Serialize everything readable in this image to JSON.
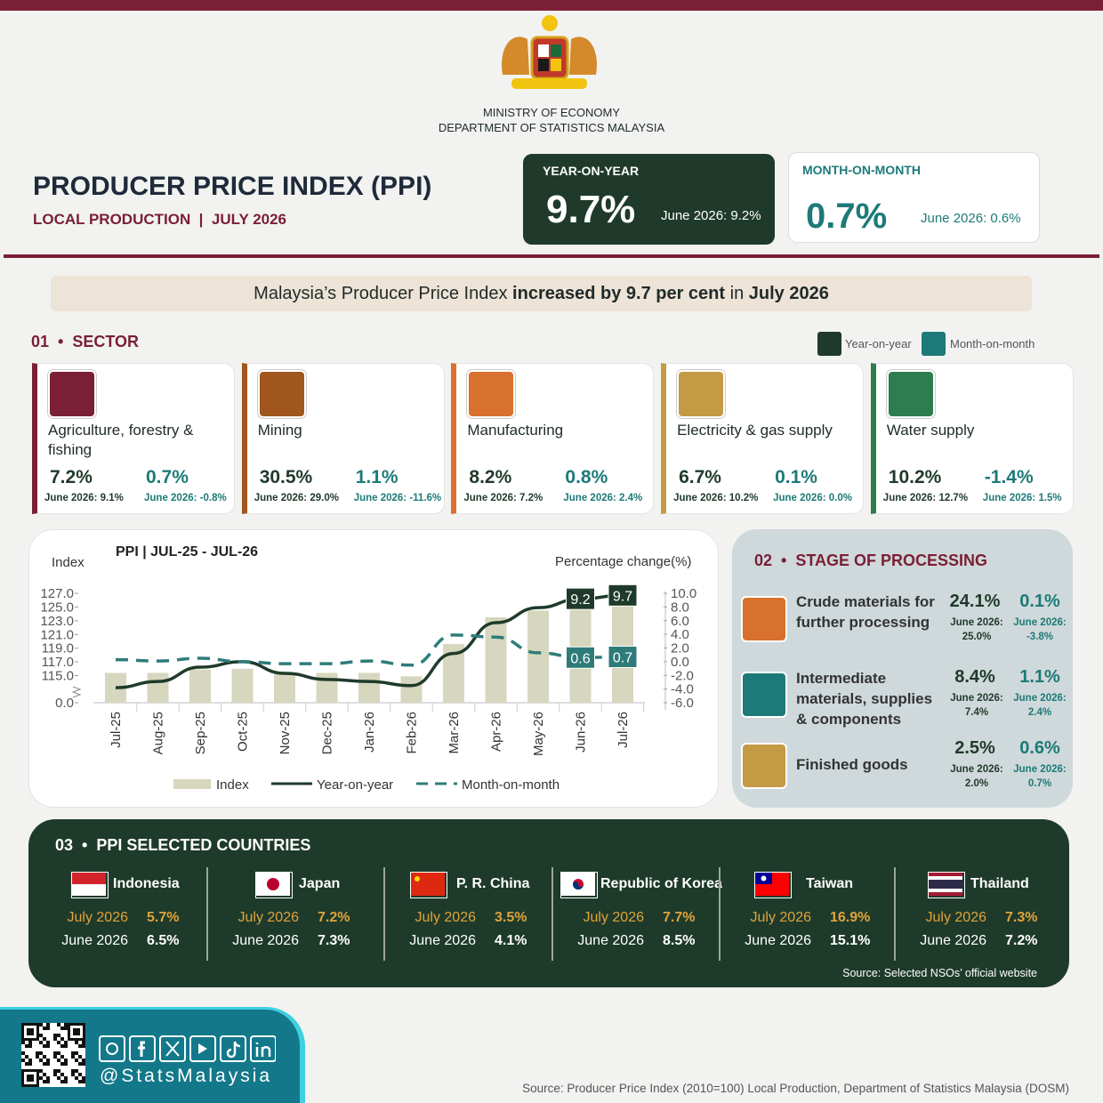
{
  "header": {
    "ministry": "MINISTRY OF ECONOMY",
    "department": "DEPARTMENT OF STATISTICS MALAYSIA",
    "title": "PRODUCER PRICE INDEX (PPI)",
    "subtitle": "LOCAL PRODUCTION  |  JULY 2026"
  },
  "kpis": [
    {
      "label": "YEAR-ON-YEAR",
      "value": "9.7%",
      "previous": "June 2026: 9.2%"
    },
    {
      "label": "MONTH-ON-MONTH",
      "value": "0.7%",
      "previous": "June 2026: 0.6%"
    }
  ],
  "headline": [
    "Malaysia’s Producer Price Index ",
    "increased by 9.7 per cent",
    " in ",
    "July 2026"
  ],
  "sector": {
    "number": "01",
    "title": "SECTOR",
    "legend": [
      "Year-on-year",
      "Month-on-month"
    ],
    "items": [
      {
        "name": "Agriculture, forestry & fishing",
        "yoy": "7.2%",
        "yoy_previous": "June 2026: 9.1%",
        "mom": "0.7%",
        "mom_previous": "June 2026: -0.8%"
      },
      {
        "name": "Mining",
        "yoy": "30.5%",
        "yoy_previous": "June 2026: 29.0%",
        "mom": "1.1%",
        "mom_previous": "June 2026: -11.6%"
      },
      {
        "name": "Manufacturing",
        "yoy": "8.2%",
        "yoy_previous": "June 2026: 7.2%",
        "mom": "0.8%",
        "mom_previous": "June 2026: 2.4%"
      },
      {
        "name": "Electricity & gas supply",
        "yoy": "6.7%",
        "yoy_previous": "June 2026: 10.2%",
        "mom": "0.1%",
        "mom_previous": "June 2026: 0.0%"
      },
      {
        "name": "Water supply",
        "yoy": "10.2%",
        "yoy_previous": "June 2026: 12.7%",
        "mom": "-1.4%",
        "mom_previous": "June 2026: 1.5%"
      }
    ]
  },
  "chart_data": {
    "type": "bar-line",
    "title": "PPI  |  JUL-25 - JUL-26",
    "y_label": "Index",
    "y2_label": "Percentage change(%)",
    "categories": [
      "Jul-25",
      "Aug-25",
      "Sep-25",
      "Oct-25",
      "Nov-25",
      "Dec-25",
      "Jan-26",
      "Feb-26",
      "Mar-26",
      "Apr-26",
      "May-26",
      "Jun-26",
      "Jul-26"
    ],
    "series": [
      {
        "name": "Index",
        "type": "bar",
        "color": "#d6d7be",
        "values": [
          115.4,
          115.4,
          115.9,
          116.0,
          115.3,
          115.4,
          115.4,
          114.9,
          119.6,
          123.5,
          124.5,
          125.1,
          125.4
        ]
      },
      {
        "name": "Year-on-year",
        "type": "line",
        "axis": "y2",
        "color": "#1f3a2a",
        "dashed": false,
        "values": [
          -3.8,
          -2.9,
          -0.8,
          0.0,
          -1.7,
          -2.6,
          -2.9,
          -3.5,
          1.2,
          5.7,
          7.9,
          9.2,
          9.7
        ],
        "value_labels": [
          null,
          null,
          null,
          null,
          null,
          null,
          null,
          null,
          null,
          null,
          null,
          "9.2",
          "9.7"
        ]
      },
      {
        "name": "Month-on-month",
        "type": "line",
        "axis": "y2",
        "color": "#2e7c7a",
        "dashed": true,
        "values": [
          0.3,
          0.1,
          0.5,
          0.0,
          -0.3,
          -0.3,
          0.1,
          -0.5,
          3.9,
          3.6,
          1.3,
          0.6,
          0.7
        ],
        "value_labels": [
          null,
          null,
          null,
          null,
          null,
          null,
          null,
          null,
          null,
          null,
          null,
          "0.6",
          "0.7"
        ]
      }
    ],
    "ylim": [
      0,
      127
    ],
    "axis_break": [
      0,
      113
    ],
    "yticks": [
      {
        "value": 0,
        "label": "0.0"
      },
      {
        "value": 115,
        "label": "115.0"
      },
      {
        "value": 117,
        "label": "117.0"
      },
      {
        "value": 119,
        "label": "119.0"
      },
      {
        "value": 121,
        "label": "121.0"
      },
      {
        "value": 123,
        "label": "123.0"
      },
      {
        "value": 125,
        "label": "125.0"
      },
      {
        "value": 127,
        "label": "127.0"
      }
    ],
    "y2lim": [
      -6,
      10
    ],
    "y2ticks": [
      {
        "value": -6,
        "label": "-6.0"
      },
      {
        "value": -4,
        "label": "-4.0"
      },
      {
        "value": -2,
        "label": "-2.0"
      },
      {
        "value": 0,
        "label": "0.0"
      },
      {
        "value": 2,
        "label": "2.0"
      },
      {
        "value": 4,
        "label": "4.0"
      },
      {
        "value": 6,
        "label": "6.0"
      },
      {
        "value": 8,
        "label": "8.0"
      },
      {
        "value": 10,
        "label": "10.0"
      }
    ]
  },
  "stage": {
    "number": "02",
    "title": "STAGE OF PROCESSING",
    "items": [
      {
        "name": "Crude materials for further processing",
        "yoy": "24.1%",
        "yoy_previous": "June 2026: 25.0%",
        "mom": "0.1%",
        "mom_previous": "June 2026: -3.8%"
      },
      {
        "name": "Intermediate materials, supplies & components",
        "yoy": "8.4%",
        "yoy_previous": "June 2026: 7.4%",
        "mom": "1.1%",
        "mom_previous": "June 2026: 2.4%"
      },
      {
        "name": "Finished goods",
        "yoy": "2.5%",
        "yoy_previous": "June 2026: 2.0%",
        "mom": "0.6%",
        "mom_previous": "June 2026: 0.7%"
      }
    ]
  },
  "countries": {
    "number": "03",
    "title": "PPI SELECTED COUNTRIES",
    "items": [
      {
        "name": "Indonesia",
        "current_label": "July 2026",
        "current": "5.7%",
        "previous_label": "June 2026",
        "previous": "6.5%"
      },
      {
        "name": "Japan",
        "current_label": "July 2026",
        "current": "7.2%",
        "previous_label": "June 2026",
        "previous": "7.3%"
      },
      {
        "name": "P. R. China",
        "current_label": "July 2026",
        "current": "3.5%",
        "previous_label": "June 2026",
        "previous": "4.1%"
      },
      {
        "name": "Republic of Korea",
        "current_label": "July 2026",
        "current": "7.7%",
        "previous_label": "June 2026",
        "previous": "8.5%"
      },
      {
        "name": "Taiwan",
        "current_label": "July 2026",
        "current": "16.9%",
        "previous_label": "June 2026",
        "previous": "15.1%"
      },
      {
        "name": "Thailand",
        "current_label": "July 2026",
        "current": "7.3%",
        "previous_label": "June 2026",
        "previous": "7.2%"
      }
    ],
    "source": "Source: Selected NSOs’ official website"
  },
  "footer": {
    "handle": "@StatsMalaysia",
    "source": "Source: Producer Price Index (2010=100) Local Production, Department of Statistics Malaysia (DOSM)"
  }
}
